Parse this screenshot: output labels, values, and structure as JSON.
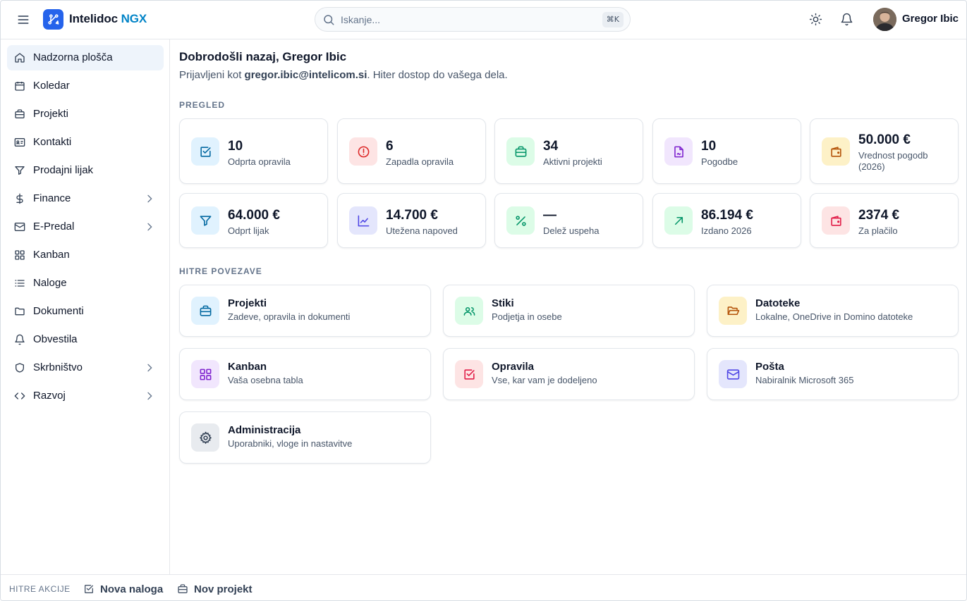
{
  "header": {
    "app_name": "Intelidoc",
    "app_suffix": "NGX",
    "search_placeholder": "Iskanje...",
    "search_shortcut": "⌘K",
    "user_name": "Gregor Ibic"
  },
  "sidebar": {
    "items": [
      {
        "label": "Nadzorna plošča",
        "icon": "home-icon"
      },
      {
        "label": "Koledar",
        "icon": "calendar-icon"
      },
      {
        "label": "Projekti",
        "icon": "briefcase-icon"
      },
      {
        "label": "Kontakti",
        "icon": "contact-card-icon"
      },
      {
        "label": "Prodajni lijak",
        "icon": "funnel-icon"
      },
      {
        "label": "Finance",
        "icon": "dollar-icon"
      },
      {
        "label": "E-Predal",
        "icon": "mail-icon"
      },
      {
        "label": "Kanban",
        "icon": "grid-icon"
      },
      {
        "label": "Naloge",
        "icon": "list-icon"
      },
      {
        "label": "Dokumenti",
        "icon": "folder-icon"
      },
      {
        "label": "Obvestila",
        "icon": "bell-icon"
      },
      {
        "label": "Skrbništvo",
        "icon": "shield-icon"
      },
      {
        "label": "Razvoj",
        "icon": "code-icon"
      }
    ]
  },
  "main": {
    "welcome": "Dobrodošli nazaj, Gregor Ibic",
    "sub_prefix": "Prijavljeni kot ",
    "email": "gregor.ibic@intelicom.si",
    "sub_suffix": ". Hiter dostop do vašega dela.",
    "overview_label": "PREGLED",
    "stats": [
      {
        "value": "10",
        "label": "Odprta opravila",
        "icon": "check-square-icon"
      },
      {
        "value": "6",
        "label": "Zapadla opravila",
        "icon": "alert-circle-icon"
      },
      {
        "value": "34",
        "label": "Aktivni projekti",
        "icon": "briefcase-icon"
      },
      {
        "value": "10",
        "label": "Pogodbe",
        "icon": "file-signature-icon"
      },
      {
        "value": "50.000 €",
        "label": "Vrednost pogodb (2026)",
        "icon": "wallet-icon"
      },
      {
        "value": "64.000 €",
        "label": "Odprt lijak",
        "icon": "funnel-icon"
      },
      {
        "value": "14.700 €",
        "label": "Utežena napoved",
        "icon": "line-chart-icon"
      },
      {
        "value": "—",
        "label": "Delež uspeha",
        "icon": "percent-icon"
      },
      {
        "value": "86.194 €",
        "label": "Izdano 2026",
        "icon": "arrow-up-right-icon"
      },
      {
        "value": "2374 €",
        "label": "Za plačilo",
        "icon": "wallet-icon"
      }
    ],
    "quick_links_label": "HITRE POVEZAVE",
    "links": [
      {
        "title": "Projekti",
        "desc": "Zadeve, opravila in dokumenti",
        "icon": "briefcase-icon"
      },
      {
        "title": "Stiki",
        "desc": "Podjetja in osebe",
        "icon": "users-icon"
      },
      {
        "title": "Datoteke",
        "desc": "Lokalne, OneDrive in Domino datoteke",
        "icon": "folder-open-icon"
      },
      {
        "title": "Kanban",
        "desc": "Vaša osebna tabla",
        "icon": "grid-icon"
      },
      {
        "title": "Opravila",
        "desc": "Vse, kar vam je dodeljeno",
        "icon": "check-square-icon"
      },
      {
        "title": "Pošta",
        "desc": "Nabiralnik Microsoft 365",
        "icon": "mail-icon"
      },
      {
        "title": "Administracija",
        "desc": "Uporabniki, vloge in nastavitve",
        "icon": "gear-icon"
      }
    ]
  },
  "footer": {
    "label": "HITRE AKCIJE",
    "new_task": "Nova naloga",
    "new_project": "Nov projekt"
  },
  "colors": {
    "accent": "#2563eb",
    "suffix": "#0284c7",
    "active_bg": "#eef4fb"
  }
}
